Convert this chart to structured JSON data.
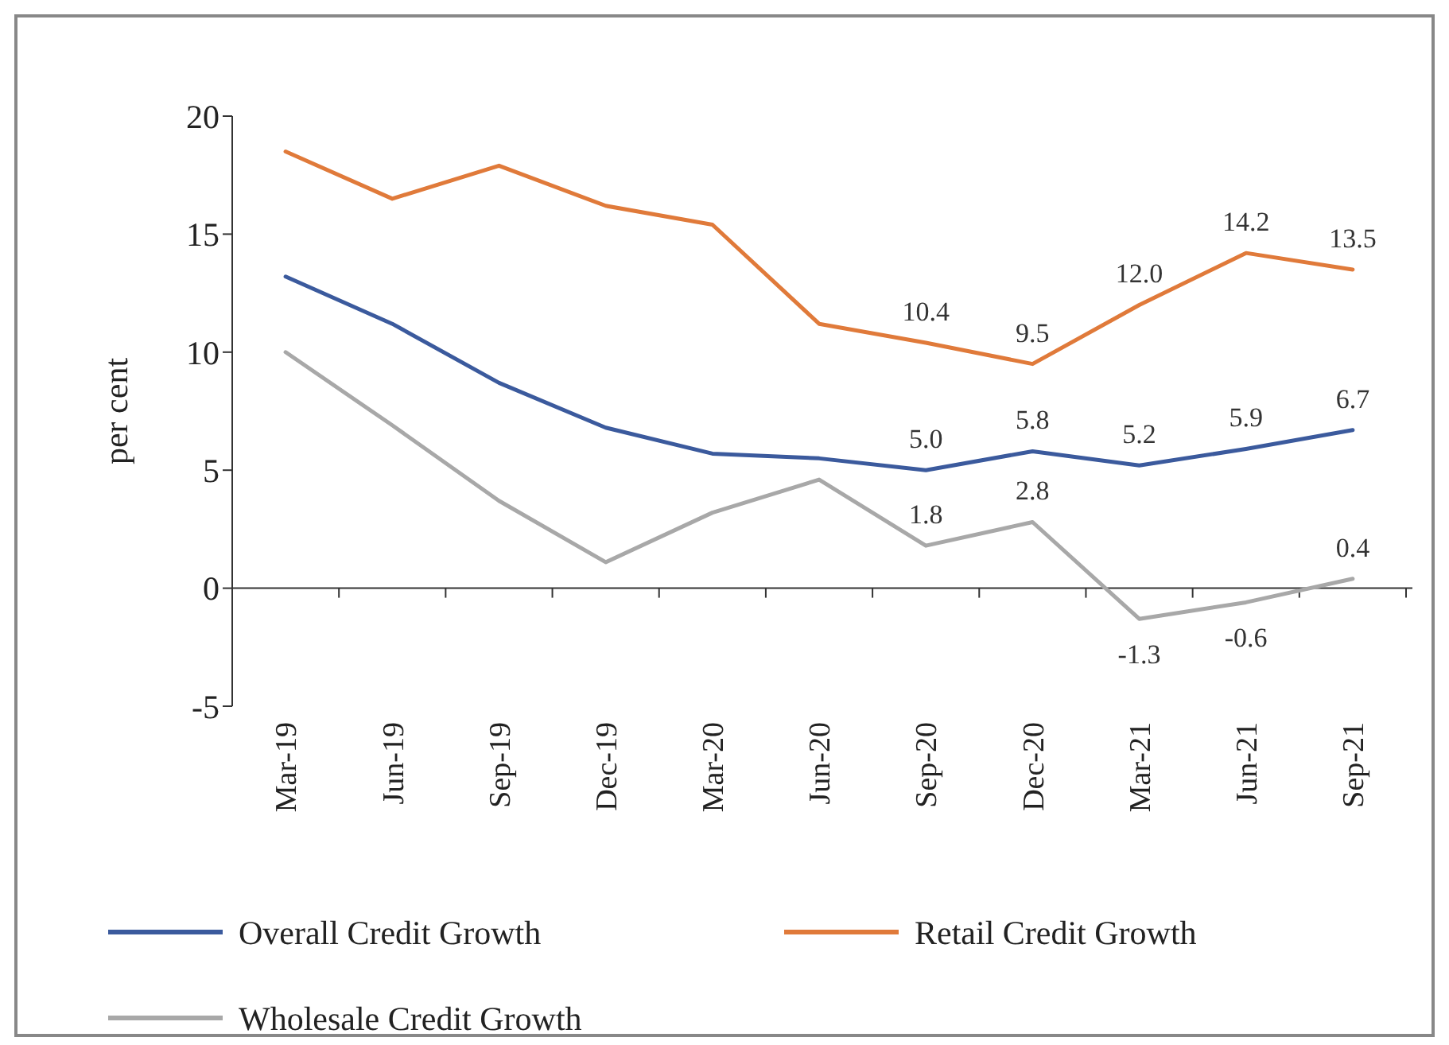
{
  "chart_data": {
    "type": "line",
    "ylabel": "per cent",
    "categories": [
      "Mar-19",
      "Jun-19",
      "Sep-19",
      "Dec-19",
      "Mar-20",
      "Jun-20",
      "Sep-20",
      "Dec-20",
      "Mar-21",
      "Jun-21",
      "Sep-21"
    ],
    "series": [
      {
        "name": "Overall Credit Growth",
        "color": "#3b5a9d",
        "values": [
          13.2,
          11.2,
          8.7,
          6.8,
          5.7,
          5.5,
          5.0,
          5.8,
          5.2,
          5.9,
          6.7
        ],
        "value_labels": [
          null,
          null,
          null,
          null,
          null,
          null,
          "5.0",
          "5.8",
          "5.2",
          "5.9",
          "6.7"
        ]
      },
      {
        "name": "Retail Credit Growth",
        "color": "#e07a3a",
        "values": [
          18.5,
          16.5,
          17.9,
          16.2,
          15.4,
          11.2,
          10.4,
          9.5,
          12.0,
          14.2,
          13.5
        ],
        "value_labels": [
          null,
          null,
          null,
          null,
          null,
          null,
          "10.4",
          "9.5",
          "12.0",
          "14.2",
          "13.5"
        ]
      },
      {
        "name": "Wholesale Credit Growth",
        "color": "#a8a8a8",
        "values": [
          10.0,
          6.9,
          3.7,
          1.1,
          3.2,
          4.6,
          1.8,
          2.8,
          -1.3,
          -0.6,
          0.4
        ],
        "value_labels": [
          null,
          null,
          null,
          null,
          null,
          null,
          "1.8",
          "2.8",
          "-1.3",
          "-0.6",
          "0.4"
        ]
      }
    ],
    "ylim": [
      -5,
      20
    ],
    "yticks": [
      -5,
      0,
      5,
      10,
      15,
      20
    ],
    "legend": "bottom",
    "marker": "none",
    "line_style": "solid"
  }
}
